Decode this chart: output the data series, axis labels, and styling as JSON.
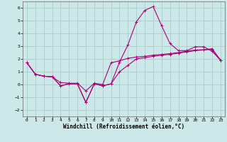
{
  "xlabel": "Windchill (Refroidissement éolien,°C)",
  "ylabel": "",
  "bg_color": "#cce8e8",
  "line_color": "#aa0077",
  "grid_color": "#aacccc",
  "xlim": [
    -0.5,
    23.5
  ],
  "ylim": [
    -2.5,
    6.5
  ],
  "yticks": [
    -2,
    -1,
    0,
    1,
    2,
    3,
    4,
    5,
    6
  ],
  "xticks": [
    0,
    1,
    2,
    3,
    4,
    5,
    6,
    7,
    8,
    9,
    10,
    11,
    12,
    13,
    14,
    15,
    16,
    17,
    18,
    19,
    20,
    21,
    22,
    23
  ],
  "line1_x": [
    0,
    1,
    2,
    3,
    4,
    5,
    6,
    7,
    8,
    9,
    10,
    11,
    12,
    13,
    14,
    15,
    16,
    17,
    18,
    19,
    20,
    21,
    22,
    23
  ],
  "line1_y": [
    1.7,
    0.8,
    0.65,
    0.6,
    0.15,
    0.1,
    0.1,
    -0.5,
    0.1,
    0.0,
    1.7,
    1.85,
    2.05,
    2.15,
    2.2,
    2.3,
    2.35,
    2.42,
    2.5,
    2.6,
    2.7,
    2.72,
    2.8,
    1.9
  ],
  "line2_x": [
    0,
    1,
    2,
    3,
    4,
    5,
    6,
    7,
    8,
    9,
    10,
    11,
    12,
    13,
    14,
    15,
    16,
    17,
    18,
    19,
    20,
    21,
    22,
    23
  ],
  "line2_y": [
    1.7,
    0.8,
    0.65,
    0.6,
    -0.1,
    0.05,
    0.05,
    -1.4,
    0.05,
    -0.1,
    0.05,
    1.75,
    3.1,
    4.9,
    5.8,
    6.1,
    4.6,
    3.2,
    2.65,
    2.65,
    2.95,
    2.95,
    2.6,
    1.9
  ],
  "line3_x": [
    0,
    1,
    2,
    3,
    4,
    5,
    6,
    7,
    8,
    9,
    10,
    11,
    12,
    13,
    14,
    15,
    16,
    17,
    18,
    19,
    20,
    21,
    22,
    23
  ],
  "line3_y": [
    1.7,
    0.8,
    0.65,
    0.6,
    -0.1,
    0.05,
    0.05,
    -1.4,
    0.05,
    -0.1,
    0.05,
    1.0,
    1.5,
    2.0,
    2.1,
    2.2,
    2.3,
    2.35,
    2.45,
    2.55,
    2.65,
    2.7,
    2.75,
    1.9
  ]
}
